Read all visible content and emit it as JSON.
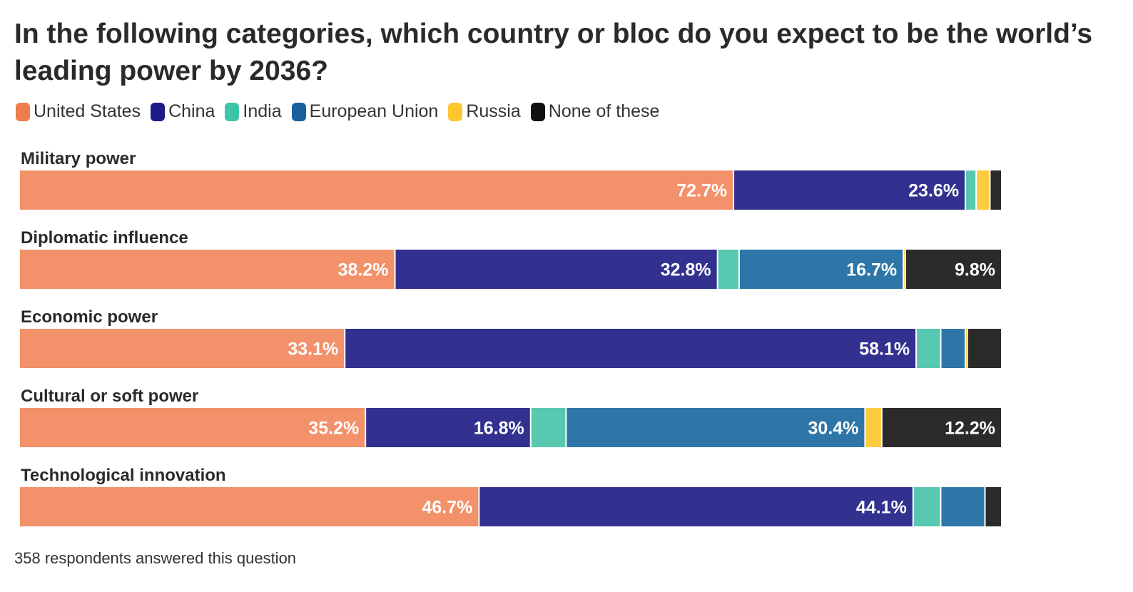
{
  "chart_data": {
    "type": "bar",
    "orientation": "horizontal",
    "stacked": true,
    "title": "In the following categories, which country or bloc do you expect to be the world’s leading power by 2036?",
    "categories": [
      "Military power",
      "Diplomatic influence",
      "Economic power",
      "Cultural or soft power",
      "Technological innovation"
    ],
    "series": [
      {
        "name": "United States",
        "color": "#f2916a",
        "legend_color": "#f07d4f",
        "values": [
          72.7,
          38.2,
          33.1,
          35.2,
          46.7
        ],
        "labels": [
          "72.7%",
          "38.2%",
          "33.1%",
          "35.2%",
          "46.7%"
        ]
      },
      {
        "name": "China",
        "color": "#32318f",
        "legend_color": "#1e1a86",
        "values": [
          23.6,
          32.8,
          58.1,
          16.8,
          44.1
        ],
        "labels": [
          "23.6%",
          "32.8%",
          "58.1%",
          "16.8%",
          "44.1%"
        ]
      },
      {
        "name": "India",
        "color": "#58c9b0",
        "legend_color": "#3ec5a8",
        "values": [
          1.1,
          2.2,
          2.5,
          3.6,
          2.8
        ],
        "labels": [
          "",
          "",
          "",
          "",
          ""
        ]
      },
      {
        "name": "European Union",
        "color": "#2f76a8",
        "legend_color": "#1a5f9c",
        "values": [
          0,
          16.7,
          2.5,
          30.4,
          4.5
        ],
        "labels": [
          "",
          "16.7%",
          "",
          "30.4%",
          ""
        ]
      },
      {
        "name": "Russia",
        "color": "#fdcb3e",
        "legend_color": "#fdc72e",
        "values": [
          1.4,
          0.2,
          0.2,
          1.7,
          0
        ],
        "labels": [
          "",
          "",
          "",
          "",
          ""
        ]
      },
      {
        "name": "None of these",
        "color": "#2b2b2b",
        "legend_color": "#111111",
        "values": [
          1.2,
          9.8,
          3.5,
          12.2,
          1.7
        ],
        "labels": [
          "",
          "9.8%",
          "",
          "12.2%",
          ""
        ]
      }
    ],
    "xlim": [
      0,
      100
    ],
    "grid": false,
    "legend_position": "top-left"
  },
  "footnote": "358 respondents answered this question"
}
